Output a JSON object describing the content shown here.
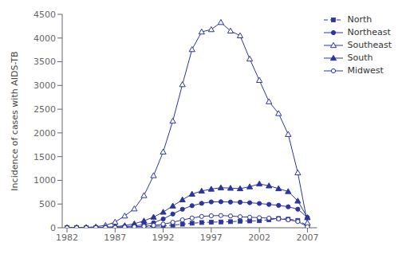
{
  "chart_data": {
    "type": "line",
    "ylabel": "Incidence of cases with AIDS-TB",
    "x": [
      1982,
      1983,
      1984,
      1985,
      1986,
      1987,
      1988,
      1989,
      1990,
      1991,
      1992,
      1993,
      1994,
      1995,
      1996,
      1997,
      1998,
      1999,
      2000,
      2001,
      2002,
      2003,
      2004,
      2005,
      2006,
      2007
    ],
    "series": [
      {
        "name": "North",
        "color": "#2b35a0",
        "marker": "square",
        "line_style": "dashed",
        "values": [
          0,
          0,
          2,
          3,
          5,
          8,
          12,
          15,
          20,
          28,
          38,
          55,
          75,
          95,
          110,
          118,
          122,
          128,
          138,
          143,
          148,
          170,
          195,
          180,
          155,
          45
        ]
      },
      {
        "name": "Northeast",
        "color": "#2b35a0",
        "marker": "circle",
        "line_style": "solid",
        "values": [
          0,
          0,
          2,
          3,
          6,
          12,
          22,
          38,
          65,
          105,
          185,
          290,
          390,
          465,
          515,
          545,
          548,
          542,
          538,
          528,
          512,
          492,
          472,
          442,
          392,
          215
        ]
      },
      {
        "name": "Southeast",
        "color": "#2b35a0",
        "marker": "triangle-open",
        "line_style": "solid",
        "values": [
          0,
          2,
          8,
          20,
          50,
          120,
          250,
          400,
          680,
          1100,
          1600,
          2250,
          3020,
          3760,
          4130,
          4180,
          4330,
          4150,
          4050,
          3560,
          3110,
          2660,
          2410,
          1970,
          1160,
          100
        ]
      },
      {
        "name": "South",
        "color": "#2b35a0",
        "marker": "triangle",
        "line_style": "solid",
        "values": [
          0,
          0,
          2,
          4,
          10,
          22,
          45,
          85,
          145,
          225,
          330,
          460,
          590,
          710,
          775,
          815,
          845,
          835,
          825,
          865,
          925,
          885,
          825,
          765,
          565,
          215
        ]
      },
      {
        "name": "Midwest",
        "color": "#2b35a0",
        "marker": "circle-open",
        "line_style": "solid",
        "values": [
          0,
          0,
          0,
          2,
          3,
          6,
          12,
          20,
          30,
          48,
          75,
          115,
          165,
          205,
          238,
          252,
          258,
          248,
          232,
          222,
          212,
          202,
          188,
          168,
          132,
          22
        ]
      }
    ],
    "xlim": [
      1981.5,
      2008.0
    ],
    "xticks": [
      1982,
      1987,
      1992,
      1997,
      2002,
      2007
    ],
    "ylim": [
      0,
      4500
    ],
    "yticks": [
      0,
      500,
      1000,
      1500,
      2000,
      2500,
      3000,
      3500,
      4000,
      4500
    ],
    "grid": false,
    "legend": "upper right"
  }
}
